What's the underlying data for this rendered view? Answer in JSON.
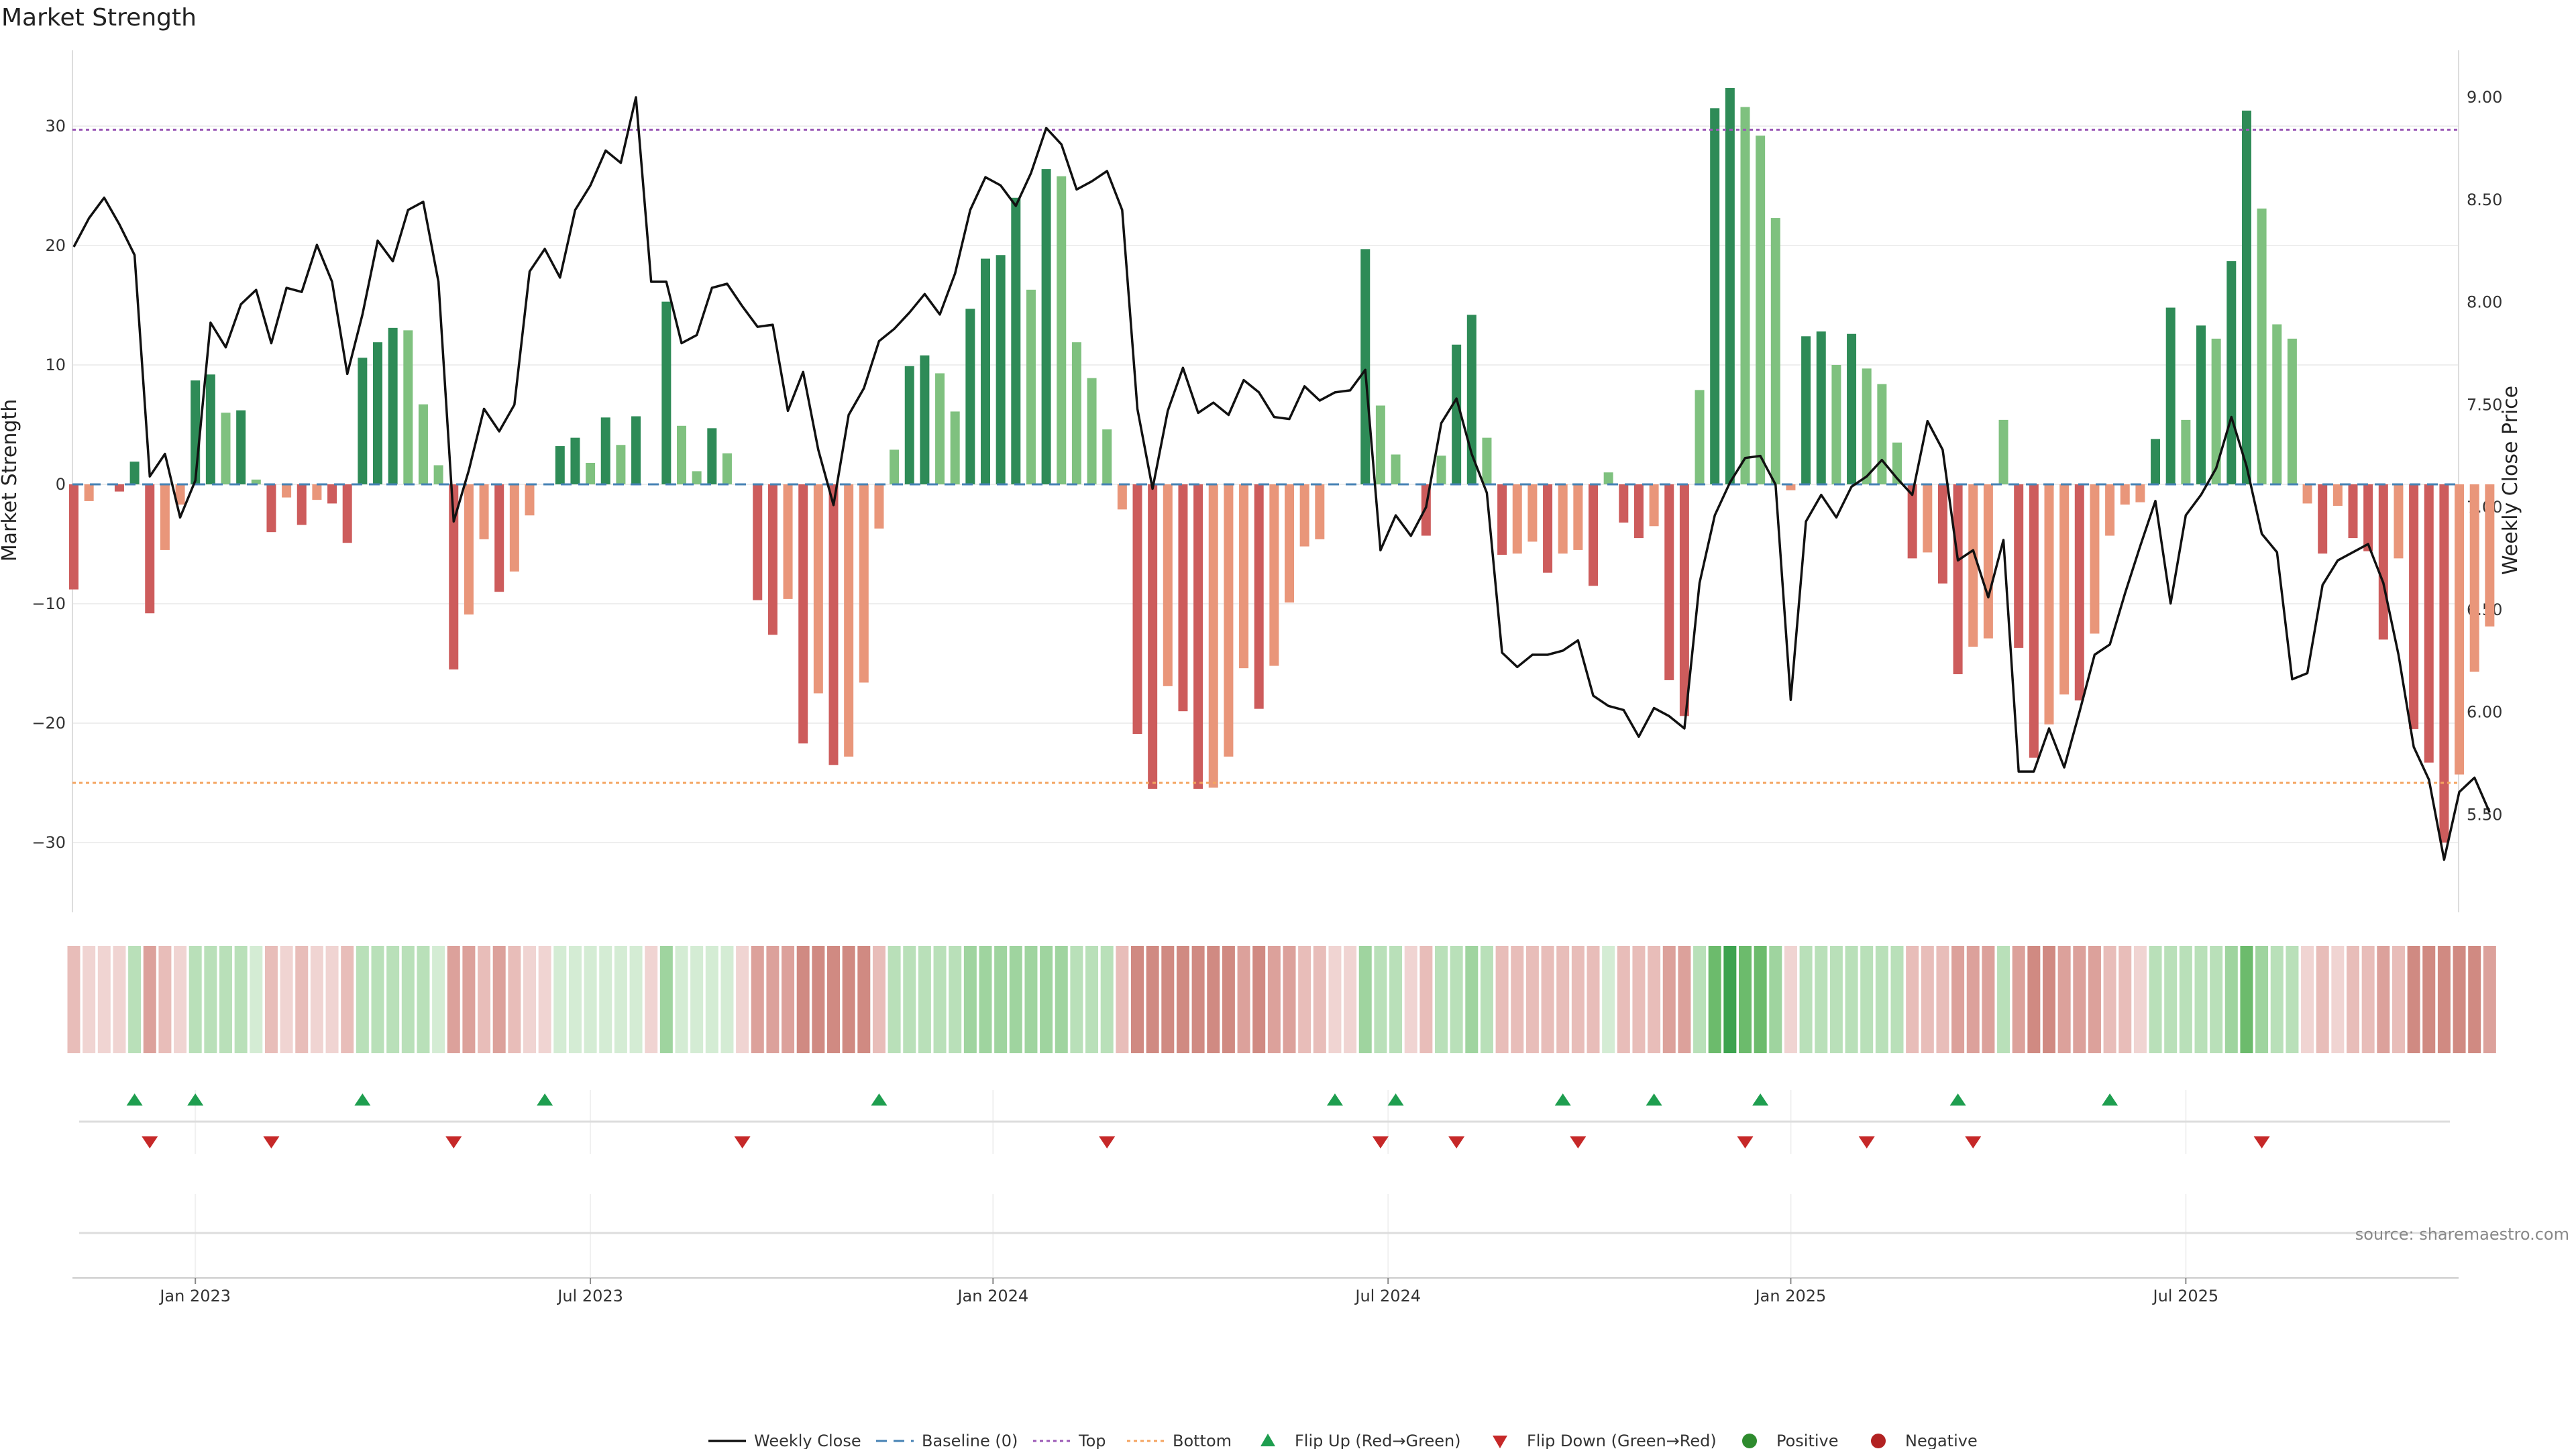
{
  "chart_data": {
    "type": "bar",
    "title": "Market Strength",
    "ylabel_left": "Market Strength",
    "ylabel_right": "Weekly Close Price",
    "ylim_left": [
      -36.5,
      36
    ],
    "ylim_right": [
      5.1,
      9.3
    ],
    "yticks_left": [
      "30",
      "20",
      "10",
      "0",
      "−10",
      "−20",
      "−30"
    ],
    "yticks_left_values": [
      30,
      20,
      10,
      0,
      -10,
      -20,
      -30
    ],
    "yticks_right": [
      "9.00",
      "8.50",
      "8.00",
      "7.50",
      "7.00",
      "6.50",
      "6.00",
      "5.50"
    ],
    "yticks_right_values": [
      9.0,
      8.5,
      8.0,
      7.5,
      7.0,
      6.5,
      6.0,
      5.5
    ],
    "x_labels": [
      "Jan 2023",
      "Jul 2023",
      "Jan 2024",
      "Jul 2024",
      "Jan 2025",
      "Jul 2025"
    ],
    "x_label_weeks": [
      8,
      34,
      60.5,
      86.5,
      113,
      139
    ],
    "top_line": 29.7,
    "bottom_line": -25.0,
    "baseline": 0,
    "strength": [
      -8.8,
      -1.4,
      0.0,
      -0.6,
      1.9,
      -10.8,
      -5.5,
      -1.7,
      8.7,
      9.2,
      6.0,
      6.2,
      0.4,
      -4.0,
      -1.1,
      -3.4,
      -1.3,
      -1.6,
      -4.9,
      10.6,
      11.9,
      13.1,
      12.9,
      6.7,
      1.6,
      -15.5,
      -10.9,
      -4.6,
      -9.0,
      -7.3,
      -2.6,
      0.0,
      3.2,
      3.9,
      1.8,
      5.6,
      3.3,
      5.7,
      0.0,
      15.3,
      4.9,
      1.1,
      4.7,
      2.6,
      0.0,
      -9.7,
      -12.6,
      -9.6,
      -21.7,
      -17.5,
      -23.5,
      -22.8,
      -16.6,
      -3.7,
      2.9,
      9.9,
      10.8,
      9.3,
      6.1,
      14.7,
      18.9,
      19.2,
      24.0,
      16.3,
      26.4,
      25.8,
      11.9,
      8.9,
      4.6,
      -2.1,
      -20.9,
      -25.5,
      -16.9,
      -19.0,
      -25.5,
      -25.4,
      -22.8,
      -15.4,
      -18.8,
      -15.2,
      -9.9,
      -5.2,
      -4.6,
      0.0,
      0.0,
      19.7,
      6.6,
      2.5,
      0.0,
      -4.3,
      2.4,
      11.7,
      14.2,
      3.9,
      -5.9,
      -5.8,
      -4.8,
      -7.4,
      -5.8,
      -5.5,
      -8.5,
      1.0,
      -3.2,
      -4.5,
      -3.5,
      -16.4,
      -19.4,
      7.9,
      31.5,
      33.2,
      31.6,
      29.2,
      22.3,
      -0.5,
      12.4,
      12.8,
      10.0,
      12.6,
      9.7,
      8.4,
      3.5,
      -6.2,
      -5.7,
      -8.3,
      -15.9,
      -13.6,
      -12.9,
      5.4,
      -13.7,
      -22.9,
      -20.1,
      -17.6,
      -18.1,
      -12.5,
      -4.3,
      -1.7,
      -1.5,
      3.8,
      14.8,
      5.4,
      13.3,
      12.2,
      18.7,
      31.3,
      23.1,
      13.4,
      12.2,
      -1.6,
      -5.8,
      -1.8,
      -4.5,
      -5.6,
      -13.0,
      -6.2,
      -20.5,
      -23.3,
      -30.0,
      -24.3,
      -15.7,
      -11.9
    ],
    "weekly_close": [
      8.27,
      8.41,
      8.51,
      8.38,
      8.23,
      7.15,
      7.26,
      6.95,
      7.13,
      7.9,
      7.78,
      7.99,
      8.06,
      7.8,
      8.07,
      8.05,
      8.28,
      8.1,
      7.65,
      7.94,
      8.3,
      8.2,
      8.45,
      8.49,
      8.1,
      6.93,
      7.18,
      7.48,
      7.37,
      7.5,
      8.15,
      8.26,
      8.12,
      8.45,
      8.57,
      8.74,
      8.68,
      9.0,
      8.1,
      8.1,
      7.8,
      7.84,
      8.07,
      8.09,
      7.98,
      7.88,
      7.89,
      7.47,
      7.66,
      7.28,
      7.01,
      7.45,
      7.58,
      7.81,
      7.87,
      7.95,
      8.04,
      7.94,
      8.14,
      8.45,
      8.61,
      8.57,
      8.47,
      8.63,
      8.85,
      8.77,
      8.55,
      8.59,
      8.64,
      8.45,
      7.48,
      7.09,
      7.47,
      7.68,
      7.46,
      7.51,
      7.45,
      7.62,
      7.56,
      7.44,
      7.43,
      7.59,
      7.52,
      7.56,
      7.57,
      7.67,
      6.79,
      6.96,
      6.86,
      7.0,
      7.41,
      7.53,
      7.26,
      7.07,
      6.29,
      6.22,
      6.28,
      6.28,
      6.3,
      6.35,
      6.08,
      6.03,
      6.01,
      5.88,
      6.02,
      5.98,
      5.92,
      6.63,
      6.96,
      7.12,
      7.24,
      7.25,
      7.11,
      6.06,
      6.93,
      7.06,
      6.95,
      7.1,
      7.15,
      7.23,
      7.14,
      7.06,
      7.42,
      7.28,
      6.74,
      6.79,
      6.56,
      6.84,
      5.71,
      5.71,
      5.92,
      5.73,
      6.0,
      6.28,
      6.33,
      6.58,
      6.81,
      7.03,
      6.53,
      6.96,
      7.06,
      7.19,
      7.44,
      7.2,
      6.87,
      6.78,
      6.16,
      6.19,
      6.62,
      6.74,
      6.78,
      6.82,
      6.63,
      6.28,
      5.83,
      5.67,
      5.28,
      5.61,
      5.68,
      5.51
    ],
    "heat_tier": [
      2,
      1,
      1,
      1,
      2,
      3,
      2,
      1,
      2,
      2,
      2,
      2,
      1,
      2,
      1,
      2,
      1,
      1,
      2,
      2,
      2,
      2,
      2,
      2,
      1,
      3,
      3,
      2,
      3,
      2,
      1,
      1,
      1,
      1,
      1,
      1,
      1,
      1,
      1,
      3,
      1,
      1,
      1,
      1,
      1,
      3,
      3,
      3,
      4,
      4,
      4,
      4,
      4,
      2,
      2,
      2,
      2,
      2,
      2,
      3,
      3,
      3,
      3,
      3,
      3,
      3,
      2,
      2,
      2,
      2,
      4,
      4,
      4,
      4,
      4,
      4,
      4,
      3,
      4,
      3,
      3,
      2,
      2,
      1,
      1,
      3,
      2,
      2,
      1,
      2,
      2,
      2,
      3,
      2,
      2,
      2,
      2,
      2,
      2,
      2,
      2,
      1,
      2,
      2,
      2,
      3,
      3,
      2,
      4,
      5,
      4,
      4,
      3,
      1,
      2,
      2,
      2,
      2,
      2,
      2,
      2,
      2,
      2,
      2,
      3,
      3,
      3,
      2,
      3,
      4,
      4,
      3,
      3,
      3,
      2,
      2,
      1,
      2,
      2,
      2,
      2,
      2,
      3,
      4,
      3,
      2,
      2,
      1,
      2,
      1,
      2,
      2,
      3,
      2,
      4,
      4,
      4,
      4,
      4,
      3
    ],
    "flip_up_weeks": [
      4,
      8,
      19,
      31,
      53,
      83,
      87,
      98,
      104,
      111,
      124,
      134
    ],
    "flip_down_weeks": [
      5,
      13,
      25,
      44,
      68,
      86,
      91,
      99,
      110,
      118,
      125,
      144
    ],
    "legend": [
      "Weekly Close",
      "Baseline (0)",
      "Top",
      "Bottom",
      "Flip Up (Red→Green)",
      "Flip Down (Green→Red)",
      "Positive",
      "Negative"
    ]
  },
  "colors": {
    "pos_dark": "#2e8b57",
    "pos_light": "#7fc17f",
    "neg_dark": "#cd5c5c",
    "neg_light": "#e9967a",
    "price_line": "#111111",
    "baseline": "#4682b4",
    "top": "#9b59b6",
    "bottom": "#f4a460",
    "flip_up": "#1e9e4f",
    "flip_down": "#c62828",
    "positive": "#2e8b2e",
    "negative": "#b22222"
  },
  "source": "source: sharemaestro.com"
}
